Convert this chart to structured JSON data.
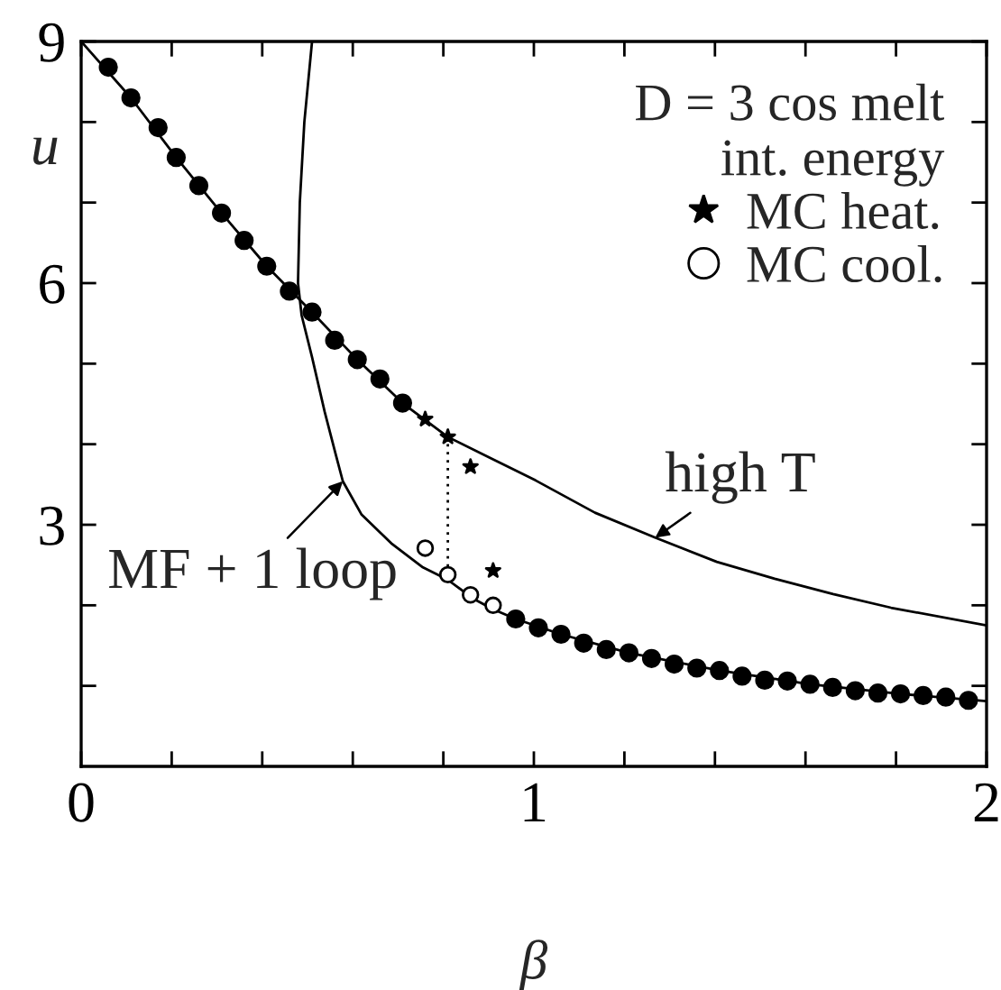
{
  "chart_data": {
    "type": "line",
    "xlabel": "β",
    "ylabel": "u",
    "legend_title": "D = 3 cos melt\nint. energy",
    "legend": "top right",
    "xlim": [
      0,
      2
    ],
    "ylim": [
      0,
      9
    ],
    "xticks": [
      0,
      {
        "value": 0.2,
        "label": null
      },
      {
        "value": 0.4,
        "label": null
      },
      {
        "value": 0.6,
        "label": null
      },
      {
        "value": 0.8,
        "label": null
      },
      1,
      {
        "value": 1.2,
        "label": null
      },
      {
        "value": 1.4,
        "label": null
      },
      {
        "value": 1.6,
        "label": null
      },
      {
        "value": 1.8,
        "label": null
      },
      2
    ],
    "yticks": [
      {
        "value": 1,
        "label": null
      },
      {
        "value": 2,
        "label": null
      },
      3,
      {
        "value": 4,
        "label": null
      },
      {
        "value": 5,
        "label": null
      },
      6,
      {
        "value": 7,
        "label": null
      },
      {
        "value": 8,
        "label": null
      },
      9
    ],
    "annotations": [
      {
        "text": "MF + 1 loop",
        "x": 0.578,
        "y": 3.54
      },
      {
        "text": "high T",
        "x": 1.268,
        "y": 2.84
      }
    ],
    "series": [
      {
        "color": "#000000",
        "x": [
          0,
          0.11,
          0.21,
          0.31,
          0.41,
          0.51,
          0.61,
          0.71,
          0.81,
          1.004,
          1.135,
          1.268,
          1.404,
          1.532,
          1.661,
          1.789,
          2.0
        ],
        "values": [
          9.0,
          8.3,
          7.56,
          6.87,
          6.21,
          5.64,
          5.05,
          4.51,
          4.09,
          3.55,
          3.15,
          2.84,
          2.54,
          2.33,
          2.14,
          1.97,
          1.75
        ]
      },
      {
        "color": "#000000",
        "x": [
          0.51,
          0.493,
          0.483,
          0.479,
          0.487,
          0.51,
          0.538,
          0.562,
          0.578,
          0.619,
          0.687,
          0.755,
          0.809,
          0.867,
          0.91,
          0.96,
          1.06,
          1.21,
          1.41,
          1.61,
          1.81,
          2.0
        ],
        "values": [
          9.0,
          8.0,
          7.0,
          6.0,
          5.6,
          5.08,
          4.4,
          3.88,
          3.54,
          3.13,
          2.76,
          2.47,
          2.32,
          2.08,
          1.95,
          1.83,
          1.64,
          1.41,
          1.19,
          1.02,
          0.9,
          0.81
        ]
      },
      {
        "color": "#000000",
        "line_style": "dotted",
        "x": [
          0.81,
          0.81
        ],
        "values": [
          2.38,
          4.09
        ]
      },
      {
        "type": "scatter",
        "color": "#000000",
        "marker": "circle",
        "x": [
          0.06,
          0.11,
          0.17,
          0.21,
          0.26,
          0.31,
          0.36,
          0.41,
          0.46,
          0.51,
          0.56,
          0.61,
          0.66,
          0.71,
          0.96,
          1.01,
          1.06,
          1.11,
          1.16,
          1.21,
          1.26,
          1.31,
          1.36,
          1.41,
          1.46,
          1.51,
          1.56,
          1.61,
          1.66,
          1.71,
          1.76,
          1.81,
          1.86,
          1.91,
          1.96
        ],
        "values": [
          8.68,
          8.3,
          7.93,
          7.56,
          7.21,
          6.87,
          6.53,
          6.21,
          5.9,
          5.64,
          5.29,
          5.05,
          4.81,
          4.51,
          1.83,
          1.72,
          1.64,
          1.53,
          1.45,
          1.41,
          1.34,
          1.27,
          1.22,
          1.19,
          1.12,
          1.07,
          1.06,
          1.02,
          0.98,
          0.94,
          0.91,
          0.9,
          0.88,
          0.86,
          0.82
        ]
      },
      {
        "type": "scatter",
        "name": "MC heat.",
        "color": "#000000",
        "marker": "star",
        "x": [
          0.76,
          0.81,
          0.86,
          0.91
        ],
        "values": [
          4.31,
          4.09,
          3.72,
          2.43
        ]
      },
      {
        "type": "scatter",
        "name": "MC cool.",
        "color": "#000000",
        "marker": "circle-open",
        "x": [
          0.76,
          0.81,
          0.86,
          0.91
        ],
        "values": [
          2.71,
          2.38,
          2.13,
          2.0
        ]
      }
    ]
  }
}
